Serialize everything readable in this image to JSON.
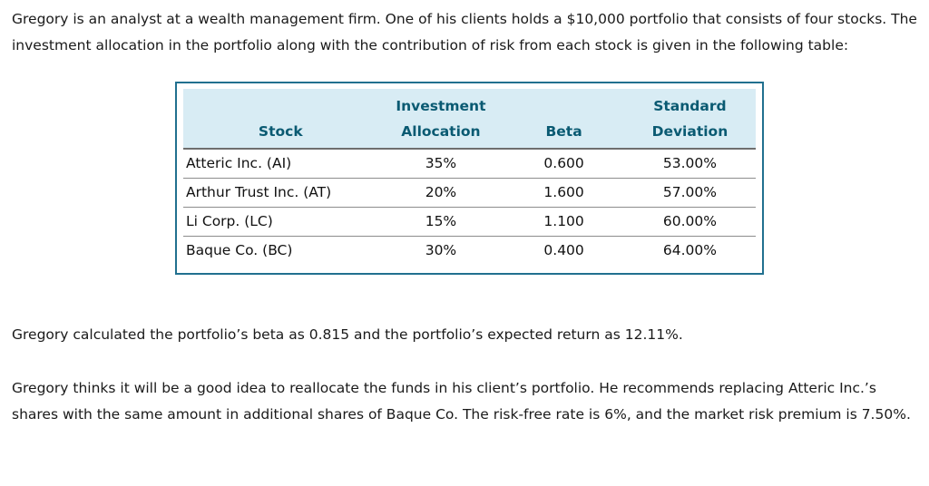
{
  "document": {
    "intro": "Gregory is an analyst at a wealth management firm. One of his clients holds a $10,000 portfolio that consists of four stocks. The investment allocation in the portfolio along with the contribution of risk from each stock is given in the following table:",
    "calculation": "Gregory calculated the portfolio’s beta as 0.815 and the portfolio’s expected return as 12.11%.",
    "recommendation": "Gregory thinks it will be a good idea to reallocate the funds in his client’s portfolio. He recommends replacing Atteric Inc.’s shares with the same amount in additional shares of Baque Co. The risk-free rate is 6%, and the market risk premium is 7.50%."
  },
  "facts": {
    "portfolio_value": "$10,000",
    "portfolio_beta": "0.815",
    "portfolio_expected_return": "12.11%",
    "risk_free_rate": "6%",
    "market_risk_premium": "7.50%"
  },
  "table": {
    "headers": [
      "Stock",
      "Investment\nAllocation",
      "Beta",
      "Standard\nDeviation"
    ],
    "rows": [
      {
        "stock": "Atteric Inc. (AI)",
        "allocation": "35%",
        "beta": "0.600",
        "std_dev": "53.00%"
      },
      {
        "stock": "Arthur Trust Inc. (AT)",
        "allocation": "20%",
        "beta": "1.600",
        "std_dev": "57.00%"
      },
      {
        "stock": "Li Corp. (LC)",
        "allocation": "15%",
        "beta": "1.100",
        "std_dev": "60.00%"
      },
      {
        "stock": "Baque Co. (BC)",
        "allocation": "30%",
        "beta": "0.400",
        "std_dev": "64.00%"
      }
    ]
  },
  "colors": {
    "table_border": "#21708f",
    "header_background": "#d8ecf4",
    "header_text": "#0a5a72",
    "body_text": "#1a1a1a",
    "row_separator": "#8c8c8c"
  }
}
